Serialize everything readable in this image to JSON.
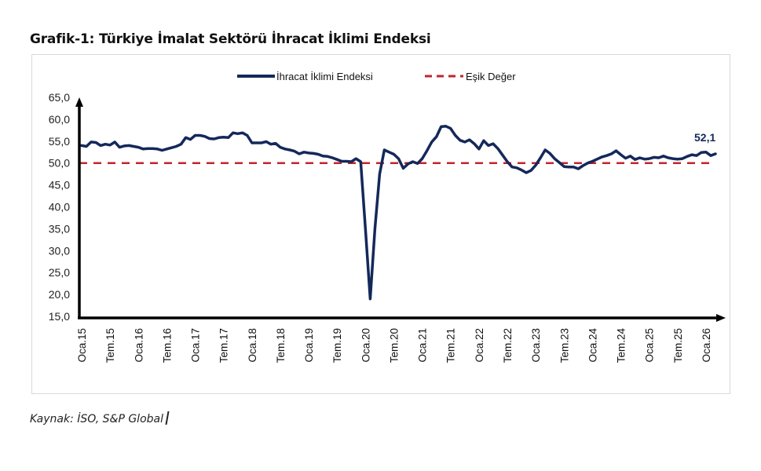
{
  "title": "Grafik-1: Türkiye İmalat Sektörü İhracat İklimi Endeksi",
  "source": "Kaynak: İSO, S&P Global",
  "colors": {
    "series": "#14285a",
    "threshold": "#c0262d",
    "axis": "#000000",
    "frame": "#d9d9d9"
  },
  "chart_data": {
    "type": "line",
    "title": "Grafik-1: Türkiye İmalat Sektörü İhracat İklimi Endeksi",
    "xlabel": "",
    "ylabel": "",
    "ylim": [
      15,
      65
    ],
    "yticks": [
      "65,0",
      "60,0",
      "55,0",
      "50,0",
      "45,0",
      "40,0",
      "35,0",
      "30,0",
      "25,0",
      "20,0",
      "15,0"
    ],
    "ytick_values": [
      65,
      60,
      55,
      50,
      45,
      40,
      35,
      30,
      25,
      20,
      15
    ],
    "xticks": [
      "Oca.15",
      "Tem.15",
      "Oca.16",
      "Tem.16",
      "Oca.17",
      "Tem.17",
      "Oca.18",
      "Tem.18",
      "Oca.19",
      "Tem.19",
      "Oca.20",
      "Tem.20",
      "Oca.21",
      "Tem.21",
      "Oca.22",
      "Tem.22",
      "Oca.23",
      "Tem.23",
      "Oca.24",
      "Tem.24",
      "Oca.25",
      "Tem.25",
      "Oca.26"
    ],
    "grid": false,
    "legend_position": "top",
    "legend": [
      "İhracat İklimi Endeksi",
      "Eşik Değer"
    ],
    "x_start": "Oca.15",
    "x_end": "Oca.26",
    "annotation": {
      "text": "52,1",
      "at": "Oca.26"
    },
    "series": [
      {
        "name": "İhracat İklimi Endeksi",
        "values": [
          54.0,
          53.8,
          54.8,
          54.7,
          54.0,
          54.3,
          54.1,
          54.8,
          53.6,
          53.9,
          54.0,
          53.8,
          53.6,
          53.2,
          53.3,
          53.3,
          53.2,
          52.9,
          53.2,
          53.5,
          53.8,
          54.3,
          55.8,
          55.4,
          56.3,
          56.3,
          56.1,
          55.6,
          55.5,
          55.8,
          55.9,
          55.8,
          56.9,
          56.7,
          56.9,
          56.3,
          54.6,
          54.6,
          54.6,
          54.9,
          54.3,
          54.5,
          53.6,
          53.2,
          53.0,
          52.7,
          52.1,
          52.5,
          52.3,
          52.2,
          52.0,
          51.6,
          51.5,
          51.2,
          50.8,
          50.4,
          50.4,
          50.3,
          51.0,
          50.3,
          35.0,
          19.0,
          35.0,
          47.5,
          53.0,
          52.5,
          52.0,
          51.0,
          48.8,
          49.8,
          50.3,
          49.9,
          51.0,
          52.8,
          54.8,
          56.0,
          58.3,
          58.4,
          57.9,
          56.3,
          55.2,
          54.8,
          55.3,
          54.4,
          53.2,
          55.1,
          54.0,
          54.4,
          53.3,
          51.8,
          50.3,
          49.1,
          48.9,
          48.4,
          47.8,
          48.3,
          49.5,
          51.2,
          53.0,
          52.2,
          51.0,
          50.1,
          49.2,
          49.1,
          49.1,
          48.7,
          49.4,
          50.0,
          50.4,
          50.9,
          51.4,
          51.7,
          52.1,
          52.8,
          51.9,
          51.1,
          51.6,
          50.8,
          51.2,
          50.9,
          51.0,
          51.3,
          51.2,
          51.6,
          51.2,
          51.0,
          50.9,
          51.0,
          51.5,
          51.9,
          51.7,
          52.4,
          52.5,
          51.7,
          52.1
        ]
      },
      {
        "name": "Eşik Değer",
        "values": "constant 50,0"
      }
    ]
  }
}
